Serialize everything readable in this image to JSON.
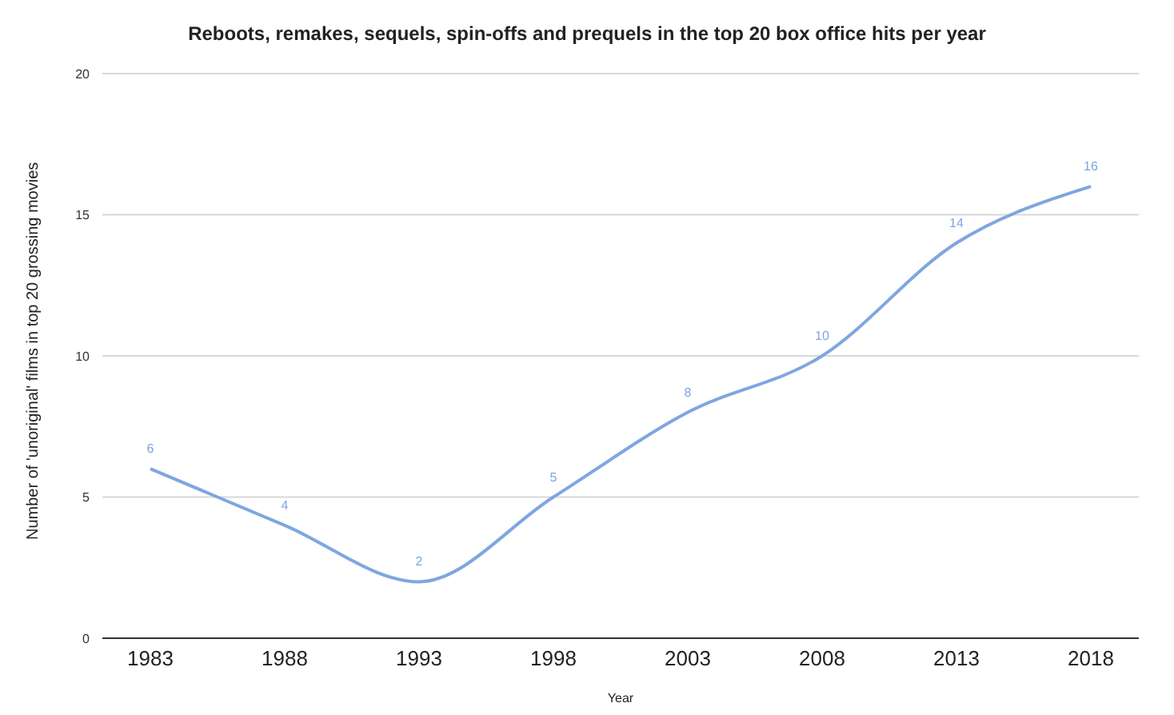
{
  "chart_data": {
    "type": "line",
    "title": "Reboots, remakes, sequels, spin-offs and prequels in the top 20 box office hits per year",
    "xlabel": "Year",
    "ylabel": "Number of 'unoriginal' films in top 20 grossing movies",
    "categories": [
      "1983",
      "1988",
      "1993",
      "1998",
      "2003",
      "2008",
      "2013",
      "2018"
    ],
    "series": [
      {
        "color": "#7ea6e0",
        "values": [
          6,
          4,
          2,
          5,
          8,
          10,
          14,
          16
        ]
      }
    ],
    "ylim": [
      0,
      20
    ],
    "yticks": [
      0,
      5,
      10,
      15,
      20
    ],
    "grid": "y",
    "data_labels": true,
    "legend": false,
    "marker": "none"
  }
}
